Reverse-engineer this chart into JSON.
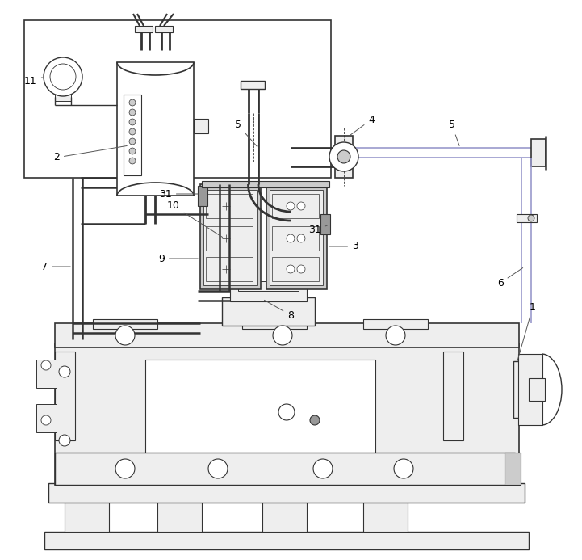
{
  "bg_color": "#ffffff",
  "lc": "#555555",
  "dk": "#333333",
  "fl": "#eeeeee",
  "fm": "#cccccc",
  "fd": "#999999",
  "purple": "#9999cc",
  "figsize": [
    7.21,
    6.93
  ],
  "dpi": 100
}
